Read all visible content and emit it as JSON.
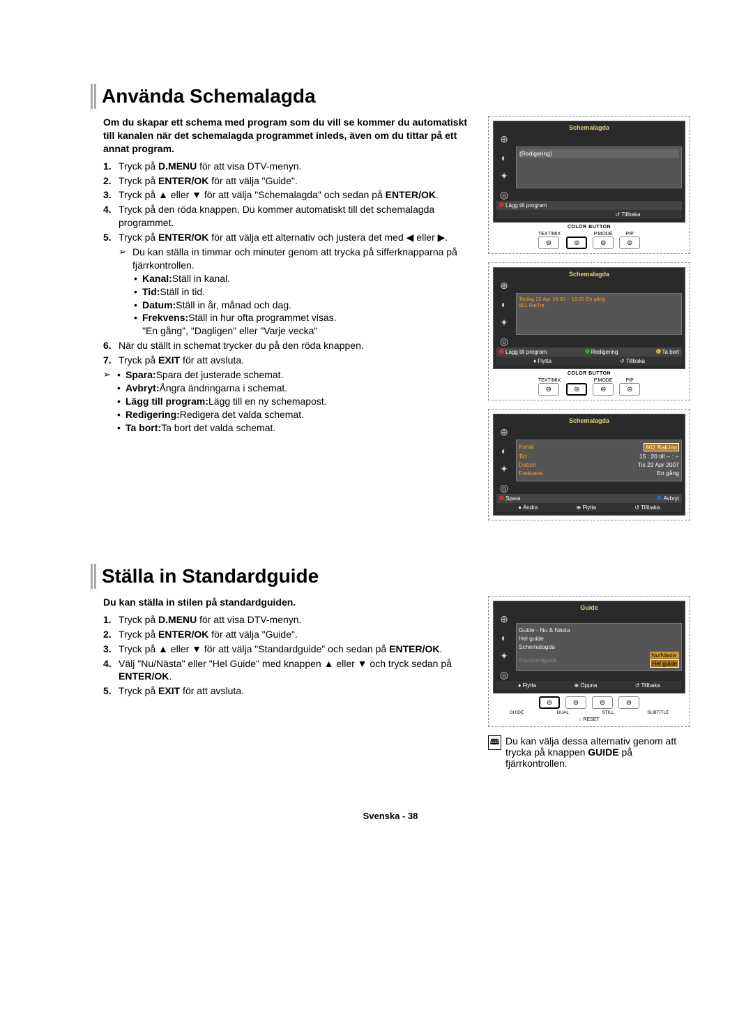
{
  "section1": {
    "heading": "Använda Schemalagda",
    "intro": "Om du skapar ett schema med program som du vill se kommer du automatiskt till kanalen när det schemalagda programmet inleds, även om du tittar på ett annat program.",
    "steps": [
      "Tryck på <b>D.MENU</b> för att visa DTV-menyn.",
      "Tryck på <b>ENTER/OK</b> för att välja \"Guide\".",
      "Tryck på ▲ eller ▼ för att välja \"Schemalagda\" och sedan på <b>ENTER/OK</b>.",
      "Tryck på den röda knappen. Du kommer automatiskt till det schemalagda programmet.",
      "Tryck på <b>ENTER/OK</b> för att välja ett alternativ och justera det med ◀ eller ▶.",
      "När du ställt in schemat trycker du på den röda knappen.",
      "Tryck på <b>EXIT</b> för att avsluta."
    ],
    "pointer1": "Du kan ställa in timmar och minuter genom att trycka på sifferknapparna på fjärrkontrollen.",
    "sub_bullets1": [
      "<b>Kanal:</b>Ställ in kanal.",
      "<b>Tid:</b>Ställ in tid.",
      "<b>Datum:</b>Ställ in år, månad och dag.",
      "<b>Frekvens:</b>Ställ in hur ofta programmet visas.",
      "\"En gång\", \"Dagligen\" eller \"Varje vecka\""
    ],
    "sub_bullets2": [
      "<b>Spara:</b>Spara det justerade schemat.",
      "<b>Avbryt:</b>Ångra ändringarna i schemat.",
      "<b>Lägg till program:</b>Lägg till en ny schemapost.",
      "<b>Redigering:</b>Redigera det valda schemat.",
      "<b>Ta bort:</b>Ta bort det valda schemat."
    ],
    "tv1": {
      "title": "Schemalagda",
      "main": "(Redigering)",
      "bottom1_left": "Lägg till program",
      "bottom2_right": "Tillbaka",
      "colorbtn": "COLOR BUTTON",
      "remote": [
        "TEXT/MIX",
        "",
        "P.MODE",
        "PIP"
      ]
    },
    "tv2": {
      "title": "Schemalagda",
      "row1": "Tisdag 22 Apr    15:30 ~ 16:00    En gång",
      "row2": "801 RaiTre",
      "bottom1": [
        "Lägg till program",
        "Redigering",
        "Ta bort"
      ],
      "bottom2": [
        "Flytta",
        "Tillbaka"
      ],
      "colorbtn": "COLOR BUTTON",
      "remote": [
        "TEXT/MIX",
        "",
        "P.MODE",
        "PIP"
      ]
    },
    "tv3": {
      "title": "Schemalagda",
      "fields": [
        {
          "lbl": "Kanal",
          "val": "802 RaiUno"
        },
        {
          "lbl": "Tid",
          "val": "15 : 20 till -- : --"
        },
        {
          "lbl": "Datum",
          "val": "Tis 22 Apr 2007"
        },
        {
          "lbl": "Frekvens",
          "val": "En gång"
        }
      ],
      "bottom1": [
        "Spara",
        "Avbryt"
      ],
      "bottom2": [
        "Ändra",
        "Flytta",
        "Tillbaka"
      ]
    }
  },
  "section2": {
    "heading": "Ställa in Standardguide",
    "intro": "Du kan ställa in stilen på standardguiden.",
    "steps": [
      "Tryck på <b>D.MENU</b> för att visa DTV-menyn.",
      "Tryck på <b>ENTER/OK</b> för att välja \"Guide\".",
      "Tryck på ▲ eller ▼ för att välja \"Standardguide\" och sedan på <b>ENTER/OK</b>.",
      "Välj \"Nu/Nästa\" eller \"Hel Guide\" med knappen ▲ eller ▼ och tryck sedan på <b>ENTER/OK</b>.",
      "Tryck på <b>EXIT</b> för att avsluta."
    ],
    "tv": {
      "title": "Guide",
      "items": [
        "Guide - Nu & Nästa",
        "Hel guide",
        "Schemalagda",
        "Standardguide"
      ],
      "options": [
        "Nu/Nästa",
        "Hel guide"
      ],
      "bottom": [
        "Flytta",
        "Öppna",
        "Tillbaka"
      ],
      "remote_labels": [
        "GUIDE",
        "DUAL",
        "STILL",
        "SUBTITLE"
      ],
      "reset": "RESET"
    },
    "note": "Du kan välja dessa alternativ genom att trycka på knappen <b>GUIDE</b> på fjärrkontrollen."
  },
  "footer": "Svenska - 38",
  "colors": {
    "red": "#cc3030",
    "green": "#30a030",
    "yellow": "#d0b030",
    "blue": "#3060c0"
  }
}
